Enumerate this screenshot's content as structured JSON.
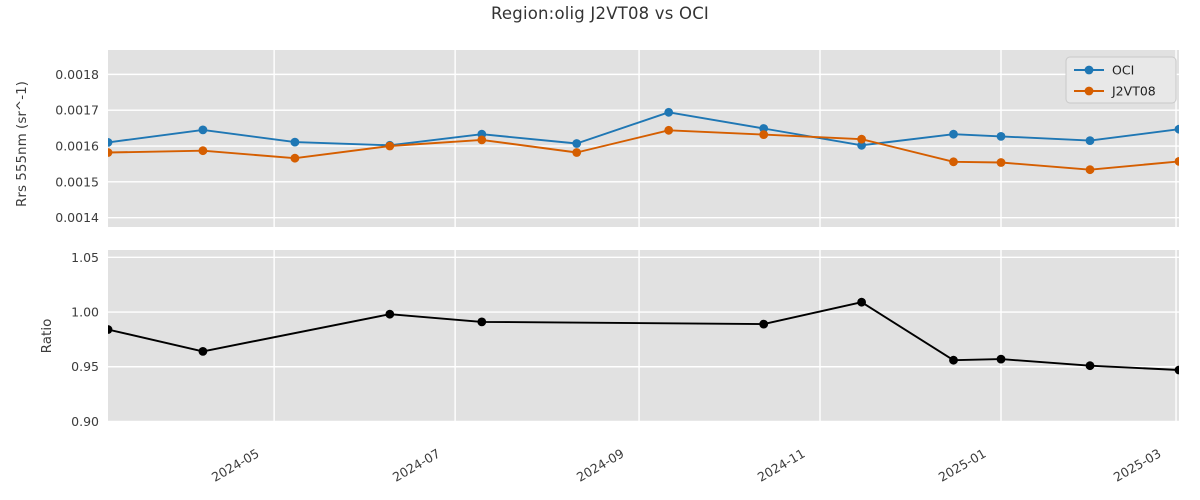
{
  "figure": {
    "title": "Region:olig J2VT08 vs OCI"
  },
  "colors": {
    "oci_line": "#1f77b4",
    "j2vt08_line": "#d55e00",
    "ratio_line": "#000000",
    "axes_background": "#e1e1e1",
    "gridline": "#ffffff",
    "text": "#3c3c3c",
    "legend_background": "#e8e8e8",
    "legend_border": "#c9c9c9"
  },
  "chart_data": [
    {
      "type": "line",
      "title": "",
      "ylabel": "Rrs 555nm (sr^-1)",
      "xlabel": "",
      "grid": true,
      "ylim": [
        0.001374,
        0.001868
      ],
      "yticks": [
        0.0014,
        0.0015,
        0.0016,
        0.0017,
        0.0018
      ],
      "ytick_labels": [
        "0.0014",
        "0.0015",
        "0.0016",
        "0.0017",
        "0.0018"
      ],
      "xlim": [
        "2024-03-06",
        "2025-03-02"
      ],
      "xticks": [
        "2024-05",
        "2024-07",
        "2024-09",
        "2024-11",
        "2025-01",
        "2025-03"
      ],
      "x": [
        "2024-03-06",
        "2024-04-07",
        "2024-05-08",
        "2024-06-09",
        "2024-07-10",
        "2024-08-11",
        "2024-09-11",
        "2024-10-13",
        "2024-11-15",
        "2024-12-16",
        "2025-01-01",
        "2025-01-31",
        "2025-03-02"
      ],
      "series": [
        {
          "name": "OCI",
          "color": "#1f77b4",
          "values": [
            0.00161,
            0.001645,
            0.001611,
            0.001602,
            0.001633,
            0.001607,
            0.001694,
            0.001649,
            0.001602,
            0.001633,
            0.001627,
            0.001615,
            0.001647
          ]
        },
        {
          "name": "J2VT08",
          "color": "#d55e00",
          "values": [
            0.001582,
            0.001587,
            0.001566,
            0.0016,
            0.001617,
            0.001582,
            0.001644,
            0.001632,
            0.001619,
            0.001556,
            0.001554,
            0.001534,
            0.001557
          ]
        }
      ],
      "legend": {
        "location": "upper right",
        "entries": [
          {
            "label": "OCI",
            "color": "#1f77b4"
          },
          {
            "label": "J2VT08",
            "color": "#d55e00"
          }
        ]
      }
    },
    {
      "type": "line",
      "title": "",
      "ylabel": "Ratio",
      "xlabel": "",
      "grid": true,
      "ylim": [
        0.8995,
        1.0567
      ],
      "yticks": [
        0.9,
        0.95,
        1.0,
        1.05
      ],
      "ytick_labels": [
        "0.90",
        "0.95",
        "1.00",
        "1.05"
      ],
      "xlim": [
        "2024-03-06",
        "2025-03-02"
      ],
      "xticks": [
        "2024-05",
        "2024-07",
        "2024-09",
        "2024-11",
        "2025-01",
        "2025-03"
      ],
      "x": [
        "2024-03-06",
        "2024-04-07",
        "2024-06-09",
        "2024-07-10",
        "2024-10-13",
        "2024-11-15",
        "2024-12-16",
        "2025-01-01",
        "2025-01-31",
        "2025-03-02"
      ],
      "series": [
        {
          "name": "Ratio",
          "color": "#000000",
          "values": [
            0.984,
            0.964,
            0.998,
            0.991,
            0.989,
            1.009,
            0.956,
            0.957,
            0.951,
            0.947
          ]
        }
      ]
    }
  ]
}
